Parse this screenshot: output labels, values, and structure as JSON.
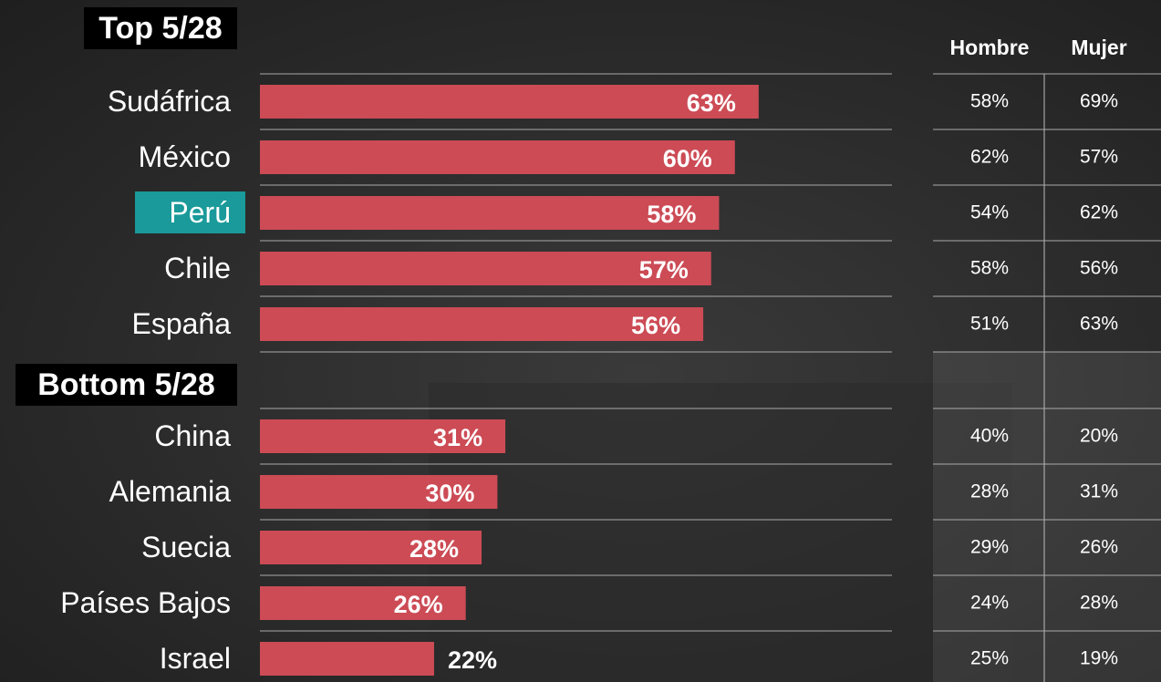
{
  "chart_data": [
    {
      "type": "bar",
      "title": "Top 5/28",
      "categories": [
        "Sudáfrica",
        "México",
        "Perú",
        "Chile",
        "España"
      ],
      "values": [
        63,
        60,
        58,
        57,
        56
      ],
      "value_labels": [
        "63%",
        "60%",
        "58%",
        "57%",
        "56%"
      ],
      "color": "#cc4b55",
      "highlight_index": 2
    },
    {
      "type": "bar",
      "title": "Bottom 5/28",
      "categories": [
        "China",
        "Alemania",
        "Suecia",
        "Países Bajos",
        "Israel"
      ],
      "values": [
        31,
        30,
        28,
        26,
        22
      ],
      "value_labels": [
        "31%",
        "30%",
        "28%",
        "26%",
        "22%"
      ],
      "color": "#cc4b55"
    }
  ],
  "table": {
    "columns": [
      "Hombre",
      "Mujer"
    ],
    "top_rows": [
      [
        "58%",
        "69%"
      ],
      [
        "62%",
        "57%"
      ],
      [
        "54%",
        "62%"
      ],
      [
        "58%",
        "56%"
      ],
      [
        "51%",
        "63%"
      ]
    ],
    "bottom_rows": [
      [
        "40%",
        "20%"
      ],
      [
        "28%",
        "31%"
      ],
      [
        "29%",
        "26%"
      ],
      [
        "24%",
        "28%"
      ],
      [
        "25%",
        "19%"
      ]
    ]
  }
}
